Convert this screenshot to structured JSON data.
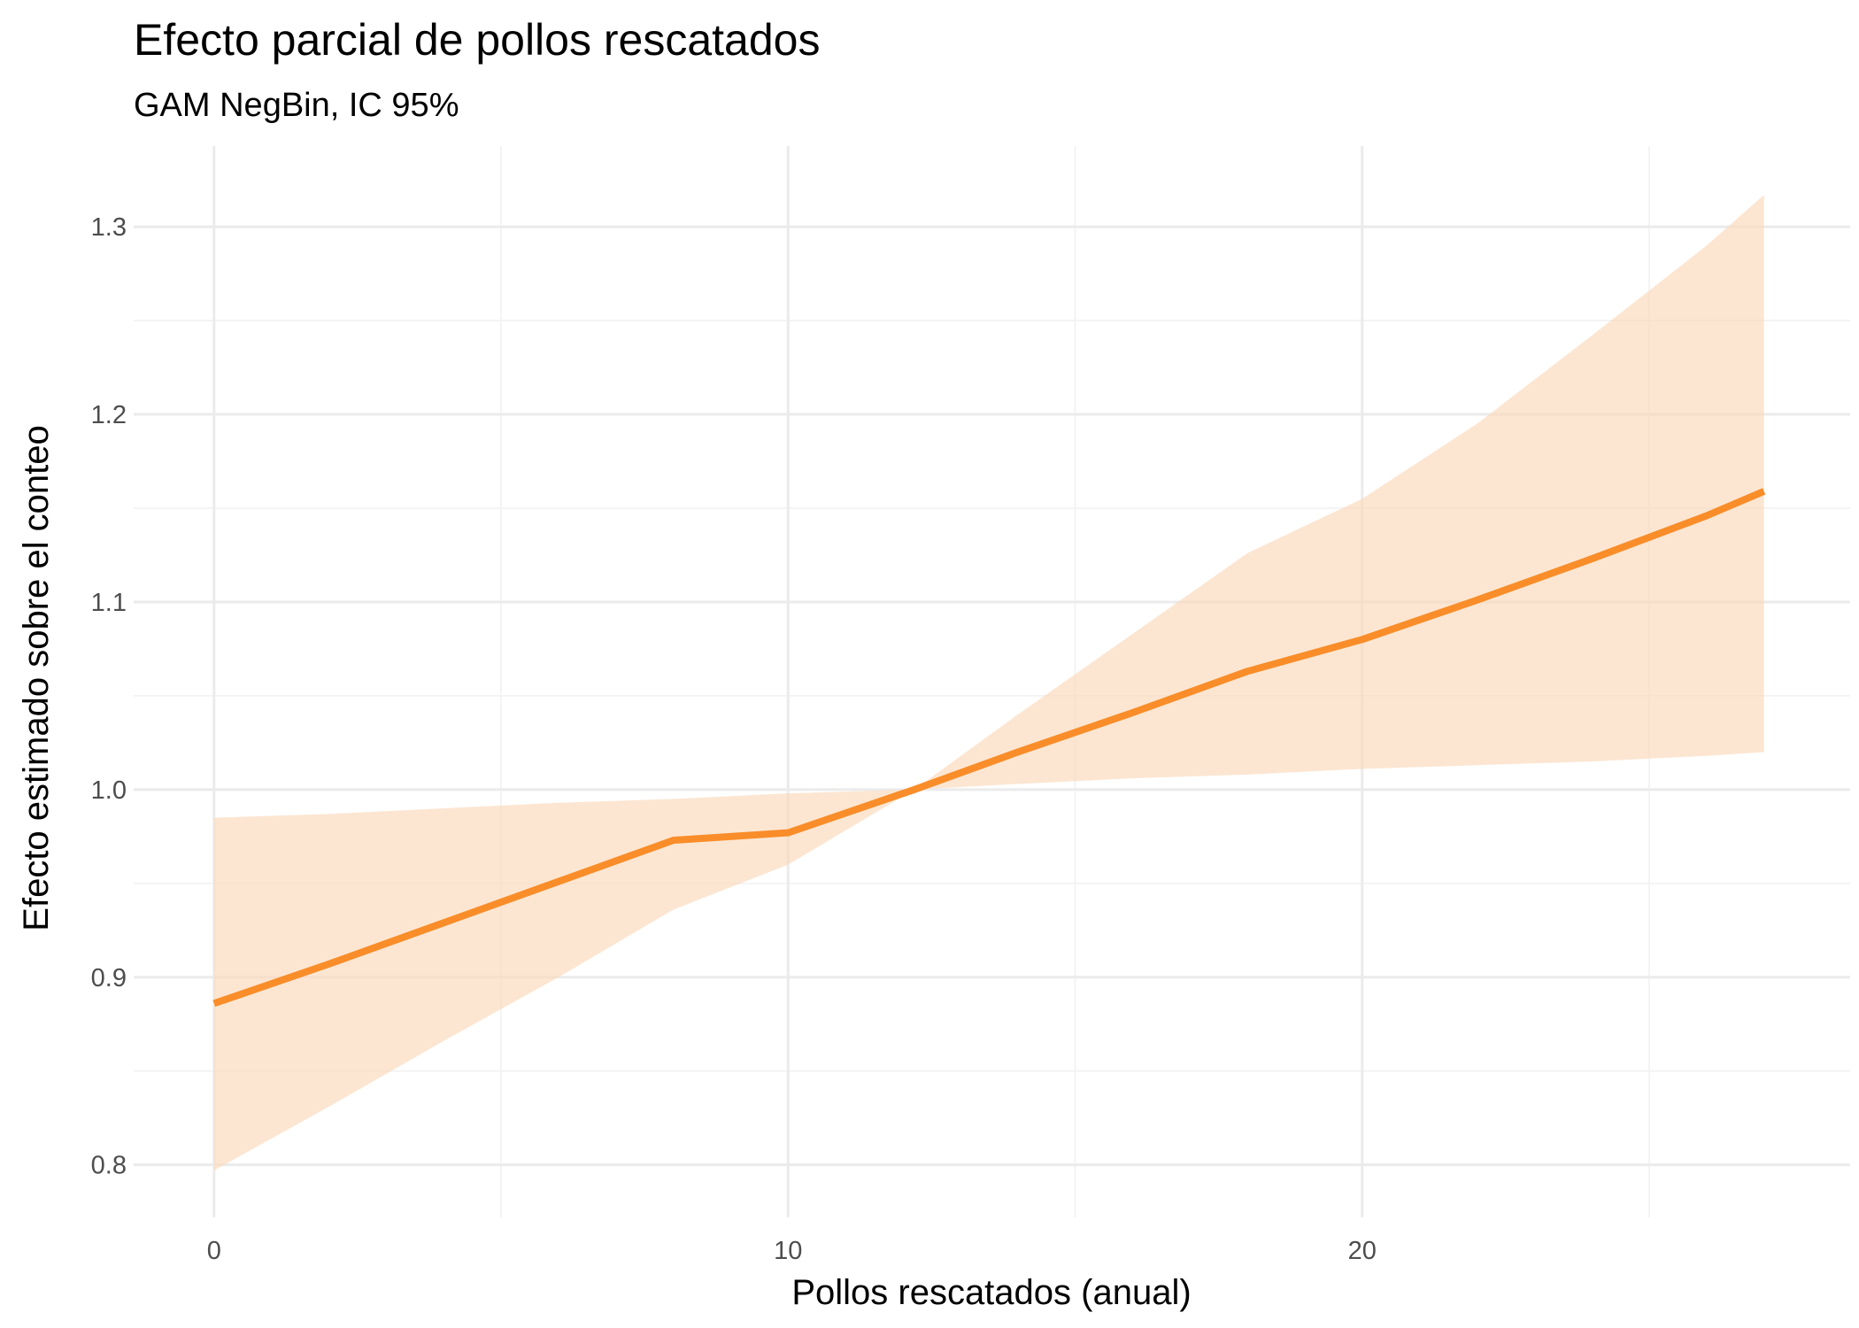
{
  "chart_data": {
    "type": "line",
    "title": "Efecto parcial de pollos rescatados",
    "subtitle": "GAM NegBin, IC 95%",
    "xlabel": "Pollos rescatados (anual)",
    "ylabel": "Efecto estimado sobre el conteo",
    "xlim": [
      -1.4,
      28.5
    ],
    "ylim": [
      0.772,
      1.343
    ],
    "x_ticks": [
      0,
      10,
      20
    ],
    "x_minor_ticks": [
      5,
      15,
      25
    ],
    "y_ticks": [
      0.8,
      0.9,
      1.0,
      1.1,
      1.2,
      1.3
    ],
    "y_tick_labels": [
      "0.8",
      "0.9",
      "1.0",
      "1.1",
      "1.2",
      "1.3"
    ],
    "y_minor_ticks": [
      0.85,
      0.95,
      1.05,
      1.15,
      1.25
    ],
    "grid": true,
    "legend": "none",
    "series": [
      {
        "color": "#F98D29",
        "band_color": "#FBD9BA",
        "band_opacity": 0.65,
        "x": [
          0,
          2,
          4,
          6,
          8,
          10,
          12.2,
          14,
          16,
          18,
          20,
          22,
          24,
          26,
          27
        ],
        "y": [
          0.886,
          0.907,
          0.929,
          0.951,
          0.973,
          0.977,
          1.0,
          1.02,
          1.041,
          1.063,
          1.08,
          1.101,
          1.123,
          1.146,
          1.159
        ],
        "lower": [
          0.797,
          0.831,
          0.866,
          0.9,
          0.936,
          0.96,
          1.0,
          1.003,
          1.006,
          1.008,
          1.011,
          1.013,
          1.015,
          1.018,
          1.02
        ],
        "upper": [
          0.985,
          0.987,
          0.99,
          0.993,
          0.995,
          0.998,
          1.0,
          1.04,
          1.083,
          1.126,
          1.155,
          1.195,
          1.242,
          1.29,
          1.317
        ]
      }
    ]
  }
}
